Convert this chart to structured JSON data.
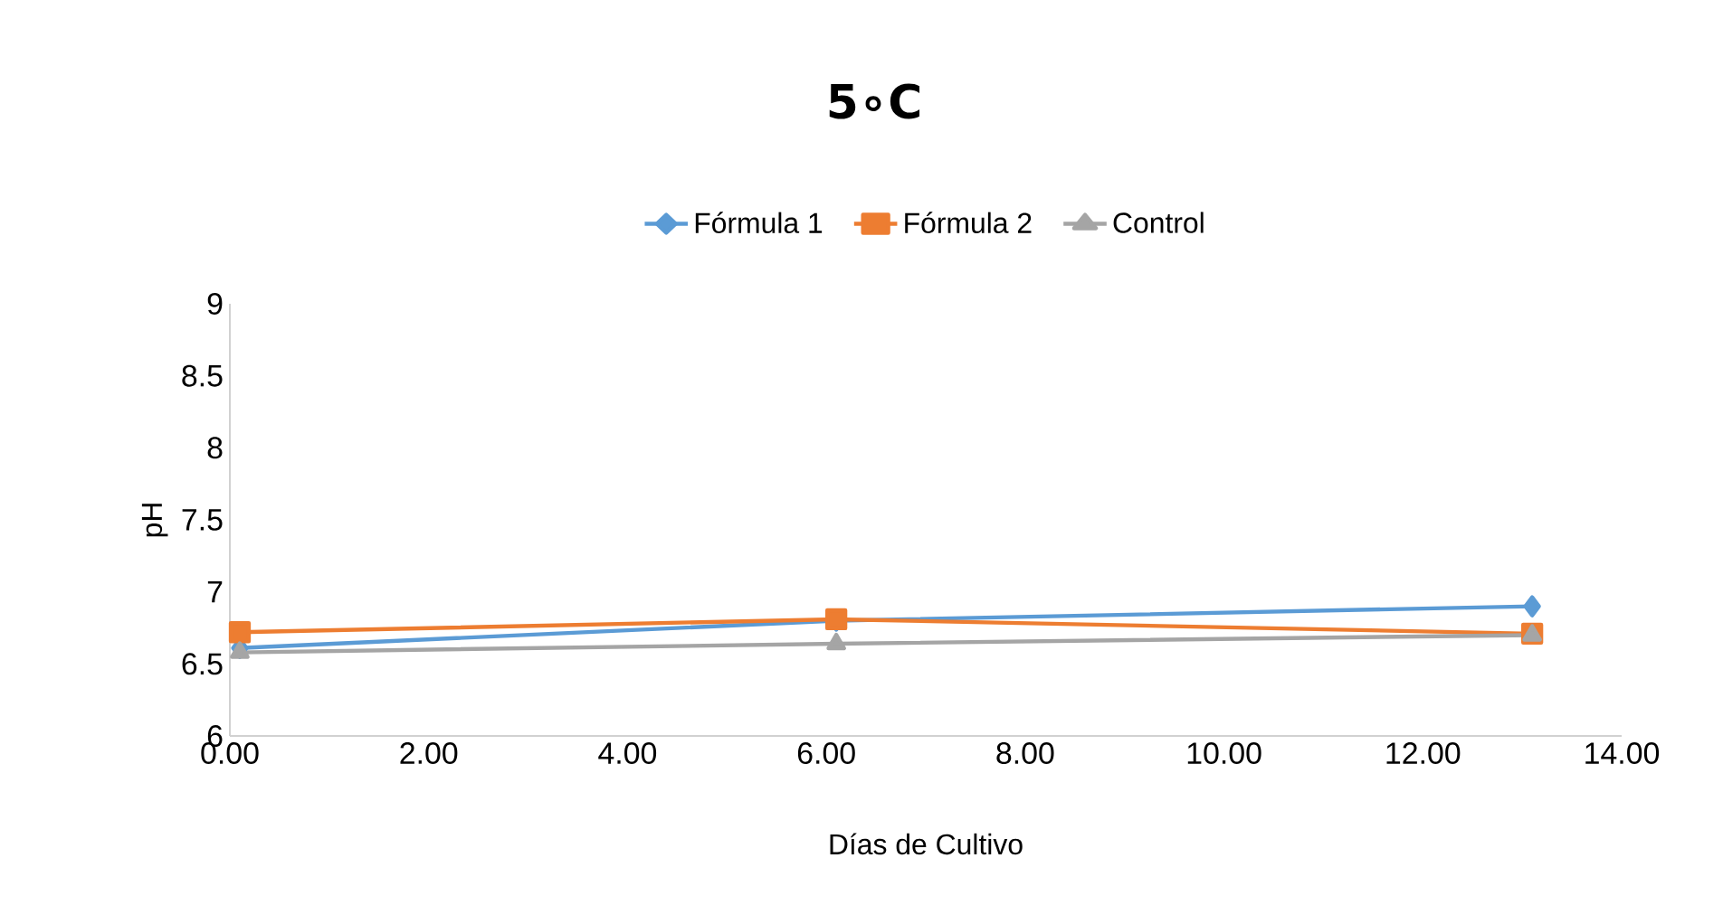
{
  "chart_data": {
    "type": "line",
    "title": "5∘C",
    "xlabel": "Días de Cultivo",
    "ylabel": "pH",
    "x": [
      0.1,
      6.1,
      13.1
    ],
    "series": [
      {
        "name": "Fórmula 1",
        "color": "#5b9bd5",
        "marker": "diamond",
        "values": [
          6.61,
          6.8,
          6.9
        ]
      },
      {
        "name": "Fórmula 2",
        "color": "#ed7d31",
        "marker": "square",
        "values": [
          6.72,
          6.81,
          6.71
        ]
      },
      {
        "name": "Control",
        "color": "#a5a5a5",
        "marker": "triangle",
        "values": [
          6.58,
          6.64,
          6.7
        ]
      }
    ],
    "xlim": [
      0,
      14
    ],
    "xticks": [
      {
        "value": 0,
        "label": "0.00"
      },
      {
        "value": 2,
        "label": "2.00"
      },
      {
        "value": 4,
        "label": "4.00"
      },
      {
        "value": 6,
        "label": "6.00"
      },
      {
        "value": 8,
        "label": "8.00"
      },
      {
        "value": 10,
        "label": "10.00"
      },
      {
        "value": 12,
        "label": "12.00"
      },
      {
        "value": 14,
        "label": "14.00"
      }
    ],
    "ylim": [
      6,
      9
    ],
    "yticks": [
      6,
      6.5,
      7,
      7.5,
      8,
      8.5,
      9
    ],
    "grid": false,
    "legend": "top"
  }
}
